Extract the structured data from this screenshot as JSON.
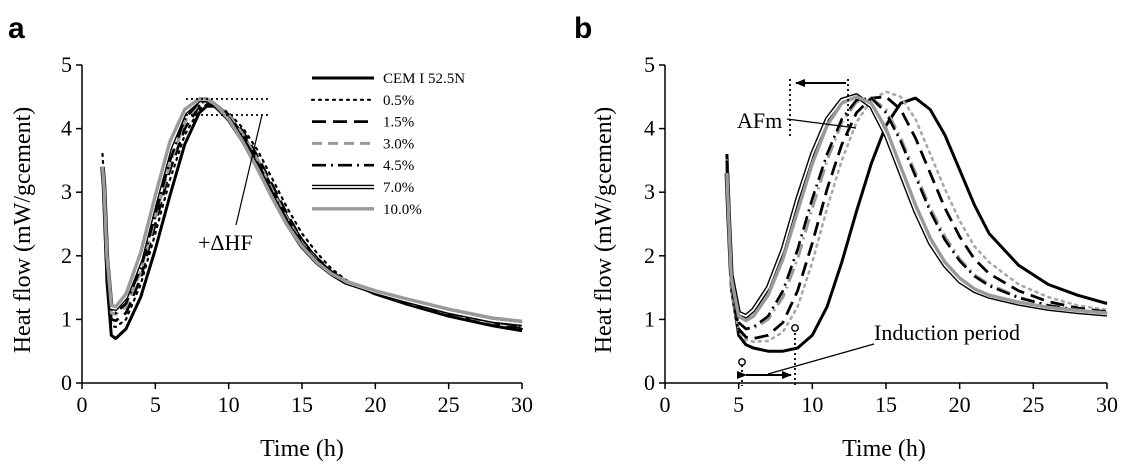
{
  "chart_data": [
    {
      "panel": "a",
      "type": "line",
      "xlabel": "Time (h)",
      "ylabel": "Heat flow (mW/gcement)",
      "xlim": [
        0,
        30
      ],
      "ylim": [
        0,
        5
      ],
      "xticks": [
        "0",
        "5",
        "10",
        "15",
        "20",
        "25",
        "30"
      ],
      "yticks": [
        "0",
        "1",
        "2",
        "3",
        "4",
        "5"
      ],
      "legend_position": "top-right",
      "annotations": [
        "+ΔHF"
      ],
      "series": [
        {
          "name": "CEM I 52.5N",
          "style": "solid-black-thick",
          "x": [
            1.4,
            1.5,
            1.7,
            2.0,
            2.3,
            3,
            4,
            5,
            6,
            7,
            8,
            8.5,
            9,
            10,
            11,
            12,
            13,
            14,
            15,
            16,
            17,
            18,
            20,
            22,
            25,
            28,
            30
          ],
          "y": [
            3.4,
            3.1,
            1.6,
            0.75,
            0.7,
            0.85,
            1.35,
            2.1,
            2.95,
            3.75,
            4.25,
            4.35,
            4.35,
            4.2,
            3.9,
            3.5,
            3.05,
            2.6,
            2.25,
            1.95,
            1.75,
            1.6,
            1.4,
            1.25,
            1.05,
            0.9,
            0.82
          ]
        },
        {
          "name": "0.5%",
          "style": "dotted-black",
          "x": [
            1.4,
            1.5,
            1.7,
            2.0,
            2.3,
            3,
            4,
            5,
            6,
            7,
            8,
            8.5,
            9,
            10,
            11,
            12,
            13,
            14,
            15,
            16,
            17,
            18,
            20,
            22,
            25,
            28,
            30
          ],
          "y": [
            3.6,
            3.2,
            1.7,
            0.9,
            0.88,
            1.0,
            1.55,
            2.35,
            3.2,
            3.9,
            4.3,
            4.38,
            4.37,
            4.25,
            4.0,
            3.65,
            3.2,
            2.75,
            2.35,
            2.05,
            1.8,
            1.62,
            1.42,
            1.25,
            1.05,
            0.9,
            0.85
          ]
        },
        {
          "name": "1.5%",
          "style": "dashed-black",
          "x": [
            1.4,
            1.5,
            1.7,
            2.0,
            2.3,
            3,
            4,
            5,
            6,
            7,
            8,
            8.5,
            9,
            10,
            11,
            12,
            13,
            14,
            15,
            16,
            17,
            18,
            20,
            22,
            25,
            28,
            30
          ],
          "y": [
            3.4,
            3.1,
            1.8,
            1.0,
            0.98,
            1.1,
            1.65,
            2.5,
            3.35,
            4.0,
            4.35,
            4.4,
            4.38,
            4.22,
            3.95,
            3.55,
            3.1,
            2.65,
            2.25,
            1.97,
            1.75,
            1.6,
            1.42,
            1.27,
            1.08,
            0.93,
            0.87
          ]
        },
        {
          "name": "3.0%",
          "style": "dashed-gray",
          "x": [
            1.4,
            1.5,
            1.7,
            2.0,
            2.3,
            3,
            4,
            5,
            6,
            7,
            8,
            8.5,
            9,
            10,
            11,
            12,
            13,
            14,
            15,
            16,
            17,
            18,
            20,
            22,
            25,
            28,
            30
          ],
          "y": [
            3.4,
            3.1,
            1.85,
            1.1,
            1.08,
            1.2,
            1.75,
            2.6,
            3.45,
            4.1,
            4.4,
            4.43,
            4.4,
            4.22,
            3.9,
            3.5,
            3.02,
            2.58,
            2.2,
            1.93,
            1.72,
            1.58,
            1.42,
            1.28,
            1.1,
            0.95,
            0.9
          ]
        },
        {
          "name": "4.5%",
          "style": "dashdot-black",
          "x": [
            1.4,
            1.5,
            1.7,
            2.0,
            2.3,
            3,
            4,
            5,
            6,
            7,
            8,
            8.5,
            9,
            10,
            11,
            12,
            13,
            14,
            15,
            16,
            17,
            18,
            20,
            22,
            25,
            28,
            30
          ],
          "y": [
            3.4,
            3.1,
            1.9,
            1.12,
            1.1,
            1.25,
            1.8,
            2.65,
            3.5,
            4.15,
            4.42,
            4.43,
            4.38,
            4.18,
            3.85,
            3.45,
            2.98,
            2.55,
            2.18,
            1.92,
            1.72,
            1.58,
            1.42,
            1.28,
            1.1,
            0.96,
            0.9
          ]
        },
        {
          "name": "7.0%",
          "style": "double-black",
          "x": [
            1.4,
            1.5,
            1.7,
            2.0,
            2.3,
            3,
            4,
            5,
            6,
            7,
            8,
            8.5,
            9,
            10,
            11,
            12,
            13,
            14,
            15,
            16,
            17,
            18,
            20,
            22,
            25,
            28,
            30
          ],
          "y": [
            3.4,
            3.1,
            1.95,
            1.18,
            1.17,
            1.35,
            1.95,
            2.85,
            3.7,
            4.25,
            4.45,
            4.45,
            4.38,
            4.15,
            3.8,
            3.38,
            2.92,
            2.5,
            2.15,
            1.9,
            1.72,
            1.58,
            1.43,
            1.3,
            1.12,
            0.98,
            0.93
          ]
        },
        {
          "name": "10.0%",
          "style": "solid-gray-thick",
          "x": [
            1.4,
            1.5,
            1.7,
            2.0,
            2.3,
            3,
            4,
            5,
            6,
            7,
            8,
            8.5,
            9,
            10,
            11,
            12,
            13,
            14,
            15,
            16,
            17,
            18,
            20,
            22,
            25,
            28,
            30
          ],
          "y": [
            3.4,
            3.1,
            2.0,
            1.22,
            1.2,
            1.4,
            2.05,
            2.95,
            3.8,
            4.3,
            4.47,
            4.47,
            4.4,
            4.15,
            3.78,
            3.35,
            2.9,
            2.48,
            2.15,
            1.9,
            1.72,
            1.6,
            1.45,
            1.33,
            1.16,
            1.02,
            0.97
          ]
        }
      ]
    },
    {
      "panel": "b",
      "type": "line",
      "xlabel": "Time (h)",
      "ylabel": "Heat flow (mW/gcement)",
      "xlim": [
        0,
        30
      ],
      "ylim": [
        0,
        5
      ],
      "xticks": [
        "0",
        "5",
        "10",
        "15",
        "20",
        "25",
        "30"
      ],
      "yticks": [
        "0",
        "1",
        "2",
        "3",
        "4",
        "5"
      ],
      "annotations": [
        "AFm",
        "Induction period"
      ],
      "series": [
        {
          "name": "CEM I 52.5N",
          "style": "solid-black-thick",
          "x": [
            4.2,
            4.3,
            4.5,
            5.0,
            5.5,
            6,
            7,
            8,
            9,
            10,
            11,
            12,
            13,
            14,
            15,
            16,
            17,
            18,
            19,
            20,
            21,
            22,
            24,
            26,
            28,
            30
          ],
          "y": [
            3.6,
            3.0,
            1.5,
            0.75,
            0.6,
            0.55,
            0.5,
            0.5,
            0.55,
            0.75,
            1.2,
            1.9,
            2.7,
            3.45,
            4.05,
            4.4,
            4.48,
            4.3,
            3.9,
            3.35,
            2.8,
            2.35,
            1.85,
            1.55,
            1.38,
            1.25
          ]
        },
        {
          "name": "0.5%",
          "style": "dotted-gray",
          "x": [
            4.2,
            4.3,
            4.5,
            5.0,
            5.5,
            6,
            7,
            8,
            9,
            10,
            11,
            12,
            13,
            14,
            15,
            16,
            17,
            18,
            19,
            20,
            21,
            22,
            24,
            26,
            28,
            30
          ],
          "y": [
            3.5,
            2.9,
            1.5,
            0.8,
            0.68,
            0.65,
            0.66,
            0.8,
            1.2,
            1.9,
            2.75,
            3.5,
            4.1,
            4.45,
            4.58,
            4.5,
            4.15,
            3.6,
            3.05,
            2.55,
            2.15,
            1.9,
            1.55,
            1.35,
            1.22,
            1.15
          ]
        },
        {
          "name": "1.5%",
          "style": "dashed-black",
          "x": [
            4.2,
            4.3,
            4.5,
            5.0,
            5.5,
            6,
            7,
            8,
            9,
            10,
            11,
            12,
            13,
            14,
            15,
            16,
            17,
            18,
            19,
            20,
            21,
            22,
            24,
            26,
            28,
            30
          ],
          "y": [
            3.5,
            2.9,
            1.6,
            0.85,
            0.72,
            0.7,
            0.75,
            0.95,
            1.45,
            2.2,
            3.05,
            3.75,
            4.25,
            4.48,
            4.5,
            4.3,
            3.85,
            3.3,
            2.75,
            2.3,
            1.95,
            1.72,
            1.45,
            1.28,
            1.18,
            1.12
          ]
        },
        {
          "name": "3.0%",
          "style": "dashdot-gray",
          "x": [
            4.2,
            4.3,
            4.5,
            5.0,
            5.5,
            6,
            7,
            8,
            9,
            10,
            11,
            12,
            13,
            14,
            15,
            16,
            17,
            18,
            19,
            20,
            21,
            22,
            24,
            26,
            28,
            30
          ],
          "y": [
            3.4,
            2.8,
            1.6,
            0.95,
            0.85,
            0.86,
            1.0,
            1.35,
            1.95,
            2.75,
            3.5,
            4.1,
            4.42,
            4.48,
            4.3,
            3.85,
            3.3,
            2.75,
            2.3,
            1.95,
            1.7,
            1.55,
            1.35,
            1.22,
            1.15,
            1.1
          ]
        },
        {
          "name": "4.5%",
          "style": "dashdot-black",
          "x": [
            4.2,
            4.3,
            4.5,
            5.0,
            5.5,
            6,
            7,
            8,
            9,
            10,
            11,
            12,
            13,
            14,
            15,
            16,
            17,
            18,
            19,
            20,
            21,
            22,
            24,
            26,
            28,
            30
          ],
          "y": [
            3.4,
            2.8,
            1.6,
            0.95,
            0.85,
            0.88,
            1.05,
            1.45,
            2.1,
            2.9,
            3.6,
            4.15,
            4.45,
            4.48,
            4.25,
            3.8,
            3.25,
            2.7,
            2.25,
            1.92,
            1.68,
            1.53,
            1.34,
            1.22,
            1.15,
            1.1
          ]
        },
        {
          "name": "7.0%",
          "style": "double-black",
          "x": [
            4.2,
            4.3,
            4.5,
            5.0,
            5.5,
            6,
            7,
            8,
            9,
            10,
            11,
            12,
            13,
            14,
            15,
            16,
            17,
            18,
            19,
            20,
            21,
            22,
            24,
            26,
            28,
            30
          ],
          "y": [
            3.3,
            2.7,
            1.7,
            1.1,
            1.05,
            1.15,
            1.5,
            2.1,
            2.9,
            3.6,
            4.15,
            4.45,
            4.52,
            4.35,
            3.9,
            3.3,
            2.7,
            2.2,
            1.85,
            1.6,
            1.45,
            1.36,
            1.25,
            1.17,
            1.12,
            1.08
          ]
        },
        {
          "name": "10.0%",
          "style": "solid-gray-thick",
          "x": [
            4.2,
            4.3,
            4.5,
            5.0,
            5.5,
            6,
            7,
            8,
            9,
            10,
            11,
            12,
            13,
            14,
            15,
            16,
            17,
            18,
            19,
            20,
            21,
            22,
            24,
            26,
            28,
            30
          ],
          "y": [
            3.3,
            2.7,
            1.65,
            1.05,
            0.98,
            1.05,
            1.38,
            1.95,
            2.7,
            3.45,
            4.05,
            4.4,
            4.5,
            4.4,
            4.0,
            3.4,
            2.8,
            2.28,
            1.9,
            1.65,
            1.48,
            1.38,
            1.27,
            1.19,
            1.14,
            1.1
          ]
        }
      ]
    }
  ]
}
